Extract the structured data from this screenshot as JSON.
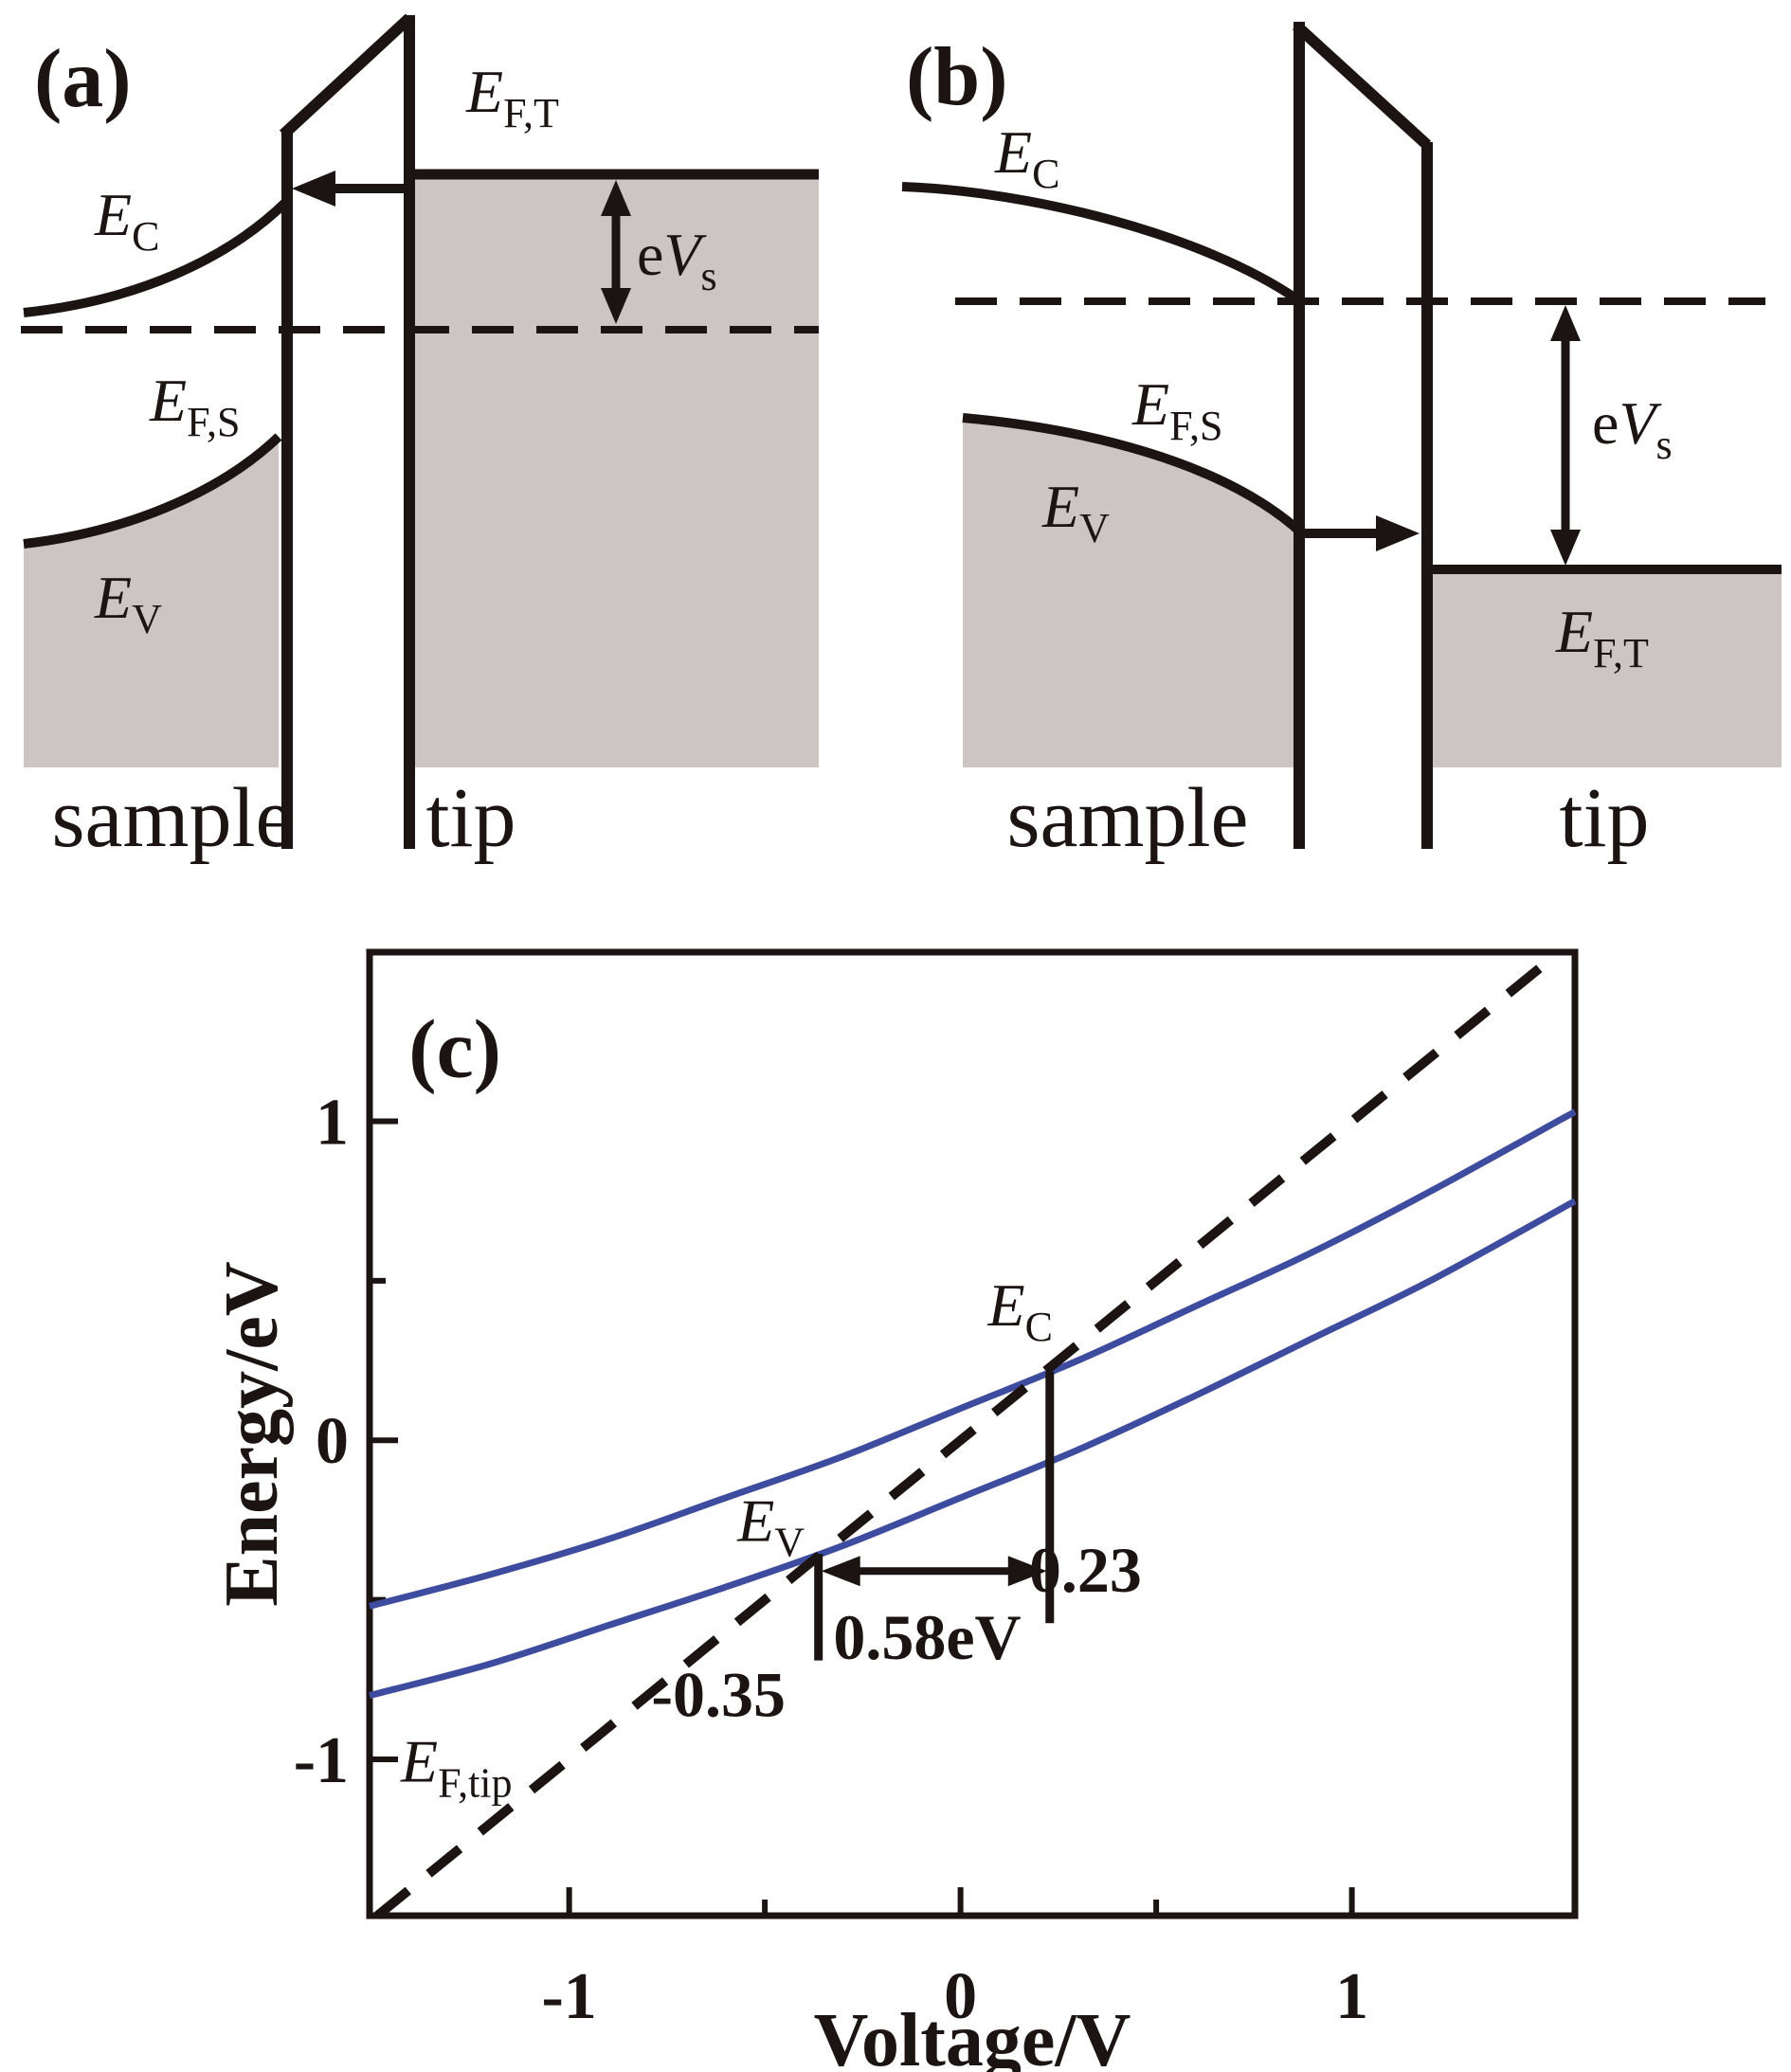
{
  "figure": {
    "colors": {
      "line_black": "#1b1412",
      "fill_gray": "#ccc5c3",
      "curve_blue": "#3e4ca0"
    },
    "panel_a": {
      "tag": "(a)",
      "labels": {
        "ec": {
          "base": "E",
          "sub": "C"
        },
        "efs": {
          "base": "E",
          "sub": "F,S"
        },
        "ev": {
          "base": "E",
          "sub": "V"
        },
        "eft": {
          "base": "E",
          "sub": "F,T"
        },
        "evs": {
          "pre": "e",
          "base": "V",
          "sub": "s"
        },
        "sample": "sample",
        "tip": "tip"
      }
    },
    "panel_b": {
      "tag": "(b)",
      "labels": {
        "ec": {
          "base": "E",
          "sub": "C"
        },
        "efs": {
          "base": "E",
          "sub": "F,S"
        },
        "ev": {
          "base": "E",
          "sub": "V"
        },
        "eft": {
          "base": "E",
          "sub": "F,T"
        },
        "evs": {
          "pre": "e",
          "base": "V",
          "sub": "s"
        },
        "sample": "sample",
        "tip": "tip"
      }
    },
    "panel_c": {
      "tag": "(c)"
    }
  },
  "chart_data": {
    "type": "line",
    "panel": "(c)",
    "title": "",
    "xlabel": "Voltage/V",
    "ylabel": "Energy/eV",
    "xlim": [
      -1.51,
      1.57
    ],
    "ylim": [
      -1.49,
      1.53
    ],
    "grid": false,
    "legend": false,
    "x_ticks_major": [
      -1,
      0,
      1
    ],
    "x_tick_labels": [
      "-1",
      "0",
      "1"
    ],
    "x_ticks_minor": [
      -0.5,
      0.5
    ],
    "y_ticks_major": [
      1,
      0,
      -1
    ],
    "y_tick_labels": [
      "1",
      "0",
      "-1"
    ],
    "y_ticks_minor": [
      0.5,
      -0.5
    ],
    "series": [
      {
        "name": "E_C",
        "label": {
          "base": "E",
          "sub": "C"
        },
        "color": "#3e4ca0",
        "style": "solid",
        "x": [
          -1.51,
          -1.2,
          -0.9,
          -0.6,
          -0.3,
          0,
          0.3,
          0.6,
          0.9,
          1.2,
          1.57
        ],
        "y": [
          -0.52,
          -0.42,
          -0.31,
          -0.18,
          -0.05,
          0.1,
          0.25,
          0.42,
          0.59,
          0.78,
          1.03
        ]
      },
      {
        "name": "E_V",
        "label": {
          "base": "E",
          "sub": "V"
        },
        "color": "#3e4ca0",
        "style": "solid",
        "x": [
          -1.51,
          -1.2,
          -0.9,
          -0.6,
          -0.3,
          0,
          0.3,
          0.6,
          0.9,
          1.2,
          1.57
        ],
        "y": [
          -0.8,
          -0.7,
          -0.58,
          -0.46,
          -0.33,
          -0.18,
          -0.03,
          0.14,
          0.32,
          0.5,
          0.75
        ]
      },
      {
        "name": "E_F,tip",
        "label": {
          "base": "E",
          "sub": "F,tip"
        },
        "color": "#1b1412",
        "style": "dashed",
        "slope": 1,
        "intercept": 0
      }
    ],
    "annotations": {
      "ev_crossing": {
        "energy_eV": -0.35,
        "label": "-0.35",
        "label_pos": {
          "v": -0.79,
          "e": -0.865
        }
      },
      "ec_crossing": {
        "energy_eV": 0.23,
        "label": "0.23",
        "label_pos": {
          "v": 0.175,
          "e": -0.475
        }
      },
      "band_gap": {
        "value": "0.58eV",
        "label_pos": {
          "v": -0.325,
          "e": -0.685
        }
      },
      "bar_ev": {
        "v": -0.363,
        "e_from": -0.356,
        "e_to": -0.69
      },
      "bar_ec": {
        "v": 0.228,
        "e_from": 0.214,
        "e_to": -0.573
      },
      "gap_arrow": {
        "e": -0.41,
        "v_from": -0.363,
        "v_to": 0.228
      },
      "ec_label_pos": {
        "v": 0.07,
        "e": 0.36
      },
      "ev_label_pos": {
        "v": -0.57,
        "e": -0.315
      },
      "eftip_label_pos": {
        "v": -1.43,
        "e": -1.07
      },
      "tag_pos": {
        "v": -1.41,
        "e": 1.14
      }
    }
  }
}
